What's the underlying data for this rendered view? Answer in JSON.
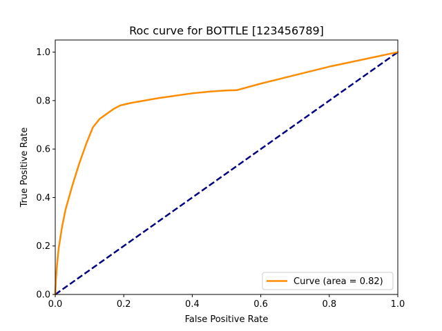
{
  "chart_data": {
    "type": "line",
    "title": "Roc curve for BOTTLE [123456789]",
    "xlabel": "False Positive Rate",
    "ylabel": "True Positive Rate",
    "xlim": [
      0.0,
      1.0
    ],
    "ylim": [
      0.0,
      1.05
    ],
    "xticks": [
      "0.0",
      "0.2",
      "0.4",
      "0.6",
      "0.8",
      "1.0"
    ],
    "yticks": [
      "0.0",
      "0.2",
      "0.4",
      "0.6",
      "0.8",
      "1.0"
    ],
    "grid": false,
    "legend_position": "lower-right",
    "series": [
      {
        "name": "Curve (area = 0.82)",
        "color": "#ff8c00",
        "line_style": "solid",
        "x": [
          0.0,
          0.002,
          0.005,
          0.01,
          0.02,
          0.03,
          0.05,
          0.07,
          0.09,
          0.11,
          0.13,
          0.15,
          0.17,
          0.19,
          0.22,
          0.26,
          0.3,
          0.35,
          0.4,
          0.45,
          0.5,
          0.53,
          0.6,
          0.7,
          0.8,
          0.9,
          1.0
        ],
        "y": [
          0.0,
          0.06,
          0.12,
          0.19,
          0.28,
          0.35,
          0.45,
          0.54,
          0.62,
          0.69,
          0.725,
          0.745,
          0.765,
          0.78,
          0.79,
          0.8,
          0.81,
          0.82,
          0.83,
          0.837,
          0.842,
          0.843,
          0.87,
          0.905,
          0.94,
          0.97,
          1.0
        ]
      },
      {
        "color": "#000080",
        "line_style": "dashed",
        "x": [
          0.0,
          1.0
        ],
        "y": [
          0.0,
          1.0
        ]
      }
    ]
  }
}
